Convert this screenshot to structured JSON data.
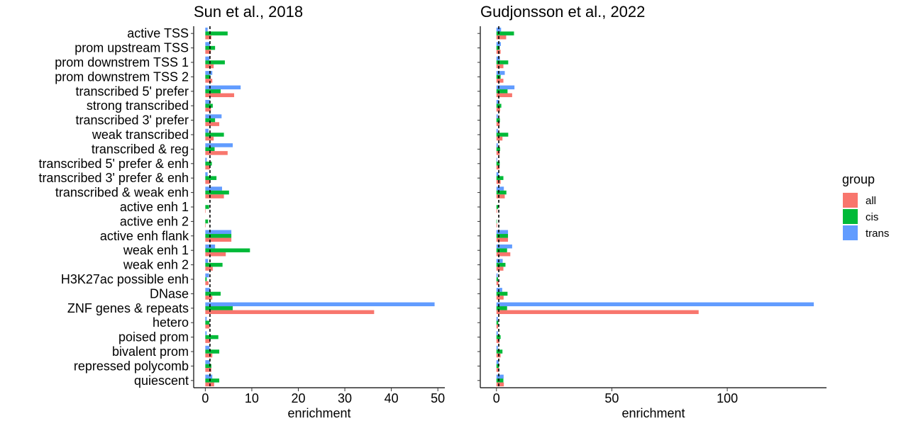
{
  "chart_data": {
    "type": "bar",
    "orientation": "horizontal",
    "categories": [
      "active TSS",
      "prom upstream TSS",
      "prom downstrem TSS 1",
      "prom downstrem TSS 2",
      "transcribed 5' prefer",
      "strong transcribed",
      "transcribed 3' prefer",
      "weak transcribed",
      "transcribed & reg",
      "transcribed 5' prefer & enh",
      "transcribed 3' prefer & enh",
      "transcribed & weak enh",
      "active enh 1",
      "active enh 2",
      "active enh flank",
      "weak enh 1",
      "weak enh 2",
      "H3K27ac possible enh",
      "DNase",
      "ZNF genes & repeats",
      "hetero",
      "poised prom",
      "bivalent prom",
      "repressed polycomb",
      "quiescent"
    ],
    "legend": {
      "title": "group",
      "position": "right",
      "entries": [
        {
          "name": "all",
          "color": "#F8766D"
        },
        {
          "name": "cis",
          "color": "#00BA38"
        },
        {
          "name": "trans",
          "color": "#619CFF"
        }
      ]
    },
    "reference_line": {
      "x": 1,
      "style": "dashed"
    },
    "xlabel": "enrichment",
    "grid": false,
    "panels": [
      {
        "title": "Sun et al., 2018",
        "xlim": [
          -2.5,
          51.5
        ],
        "xticks": [
          0,
          10,
          20,
          30,
          40,
          50
        ],
        "series": [
          {
            "name": "all",
            "values": [
              1.3,
              1.2,
              1.8,
              1.5,
              6.2,
              1.2,
              3.0,
              1.8,
              4.8,
              1.0,
              1.0,
              4.0,
              0.1,
              0.1,
              5.6,
              4.4,
              1.6,
              0.7,
              1.5,
              36.3,
              0.9,
              1.0,
              1.5,
              1.3,
              1.9
            ]
          },
          {
            "name": "cis",
            "values": [
              4.8,
              2.1,
              4.2,
              1.1,
              3.3,
              1.6,
              2.1,
              4.0,
              2.0,
              1.4,
              2.4,
              5.1,
              0.8,
              0.6,
              5.6,
              9.6,
              3.7,
              0.3,
              3.3,
              5.9,
              0.9,
              2.8,
              3.0,
              1.3,
              3.0
            ]
          },
          {
            "name": "trans",
            "values": [
              0.5,
              1.0,
              0.9,
              1.5,
              7.6,
              1.0,
              3.5,
              0.7,
              5.9,
              0.3,
              0.5,
              3.6,
              0.0,
              0.0,
              5.6,
              2.1,
              0.6,
              0.8,
              1.0,
              49.3,
              0.3,
              0.3,
              0.9,
              1.0,
              1.5
            ]
          }
        ]
      },
      {
        "title": "Gudjonsson et al., 2022",
        "xlim": [
          -7,
          143
        ],
        "xticks": [
          0,
          50,
          100
        ],
        "series": [
          {
            "name": "all",
            "values": [
              4.2,
              1.8,
              3.0,
              3.0,
              6.8,
              1.6,
              1.4,
              2.6,
              1.4,
              1.3,
              1.8,
              3.6,
              0.3,
              0.3,
              5.0,
              6.0,
              3.0,
              0.9,
              3.1,
              87.6,
              0.7,
              1.3,
              1.8,
              1.1,
              3.2
            ]
          },
          {
            "name": "cis",
            "values": [
              7.6,
              1.4,
              5.1,
              1.8,
              4.8,
              2.1,
              1.5,
              5.1,
              1.6,
              1.4,
              3.0,
              4.3,
              0.8,
              0.2,
              5.0,
              4.6,
              3.9,
              0.7,
              4.8,
              4.6,
              0.8,
              1.8,
              2.6,
              1.1,
              3.0
            ]
          },
          {
            "name": "trans",
            "values": [
              2.0,
              1.9,
              1.5,
              3.6,
              7.8,
              1.1,
              0.6,
              0.6,
              0.6,
              0.3,
              0.9,
              3.2,
              0.0,
              0.0,
              5.0,
              6.8,
              2.7,
              0.5,
              2.5,
              137.5,
              0.6,
              0.6,
              0.6,
              1.0,
              3.1
            ]
          }
        ]
      }
    ]
  }
}
